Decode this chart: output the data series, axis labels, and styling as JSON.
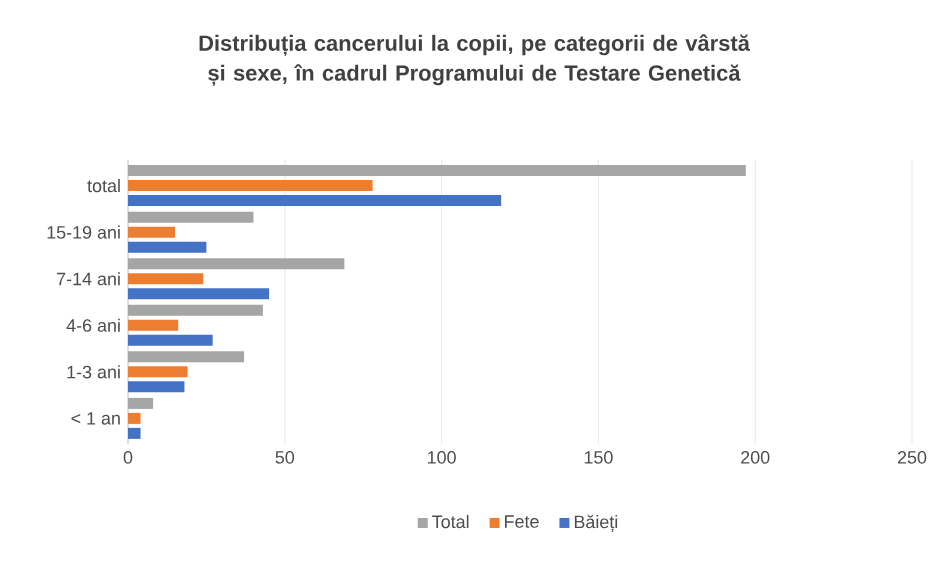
{
  "chart_data": {
    "type": "bar",
    "orientation": "horizontal",
    "title": "Distribuția cancerului la copii, pe categorii de vârstă și sexe, în cadrul Programului de Testare Genetică",
    "categories": [
      "total",
      "15-19 ani",
      "7-14 ani",
      "4-6 ani",
      "1-3 ani",
      "< 1 an"
    ],
    "series": [
      {
        "name": "Total",
        "color": "#a5a5a5",
        "values": [
          197,
          40,
          69,
          43,
          37,
          8
        ]
      },
      {
        "name": "Fete",
        "color": "#ed7d31",
        "values": [
          78,
          15,
          24,
          16,
          19,
          4
        ]
      },
      {
        "name": "Băieți",
        "color": "#4472c4",
        "values": [
          119,
          25,
          45,
          27,
          18,
          4
        ]
      }
    ],
    "xlim": [
      0,
      250
    ],
    "xticks": [
      0,
      50,
      100,
      150,
      200,
      250
    ],
    "grid": "x",
    "legend": "bottom"
  }
}
